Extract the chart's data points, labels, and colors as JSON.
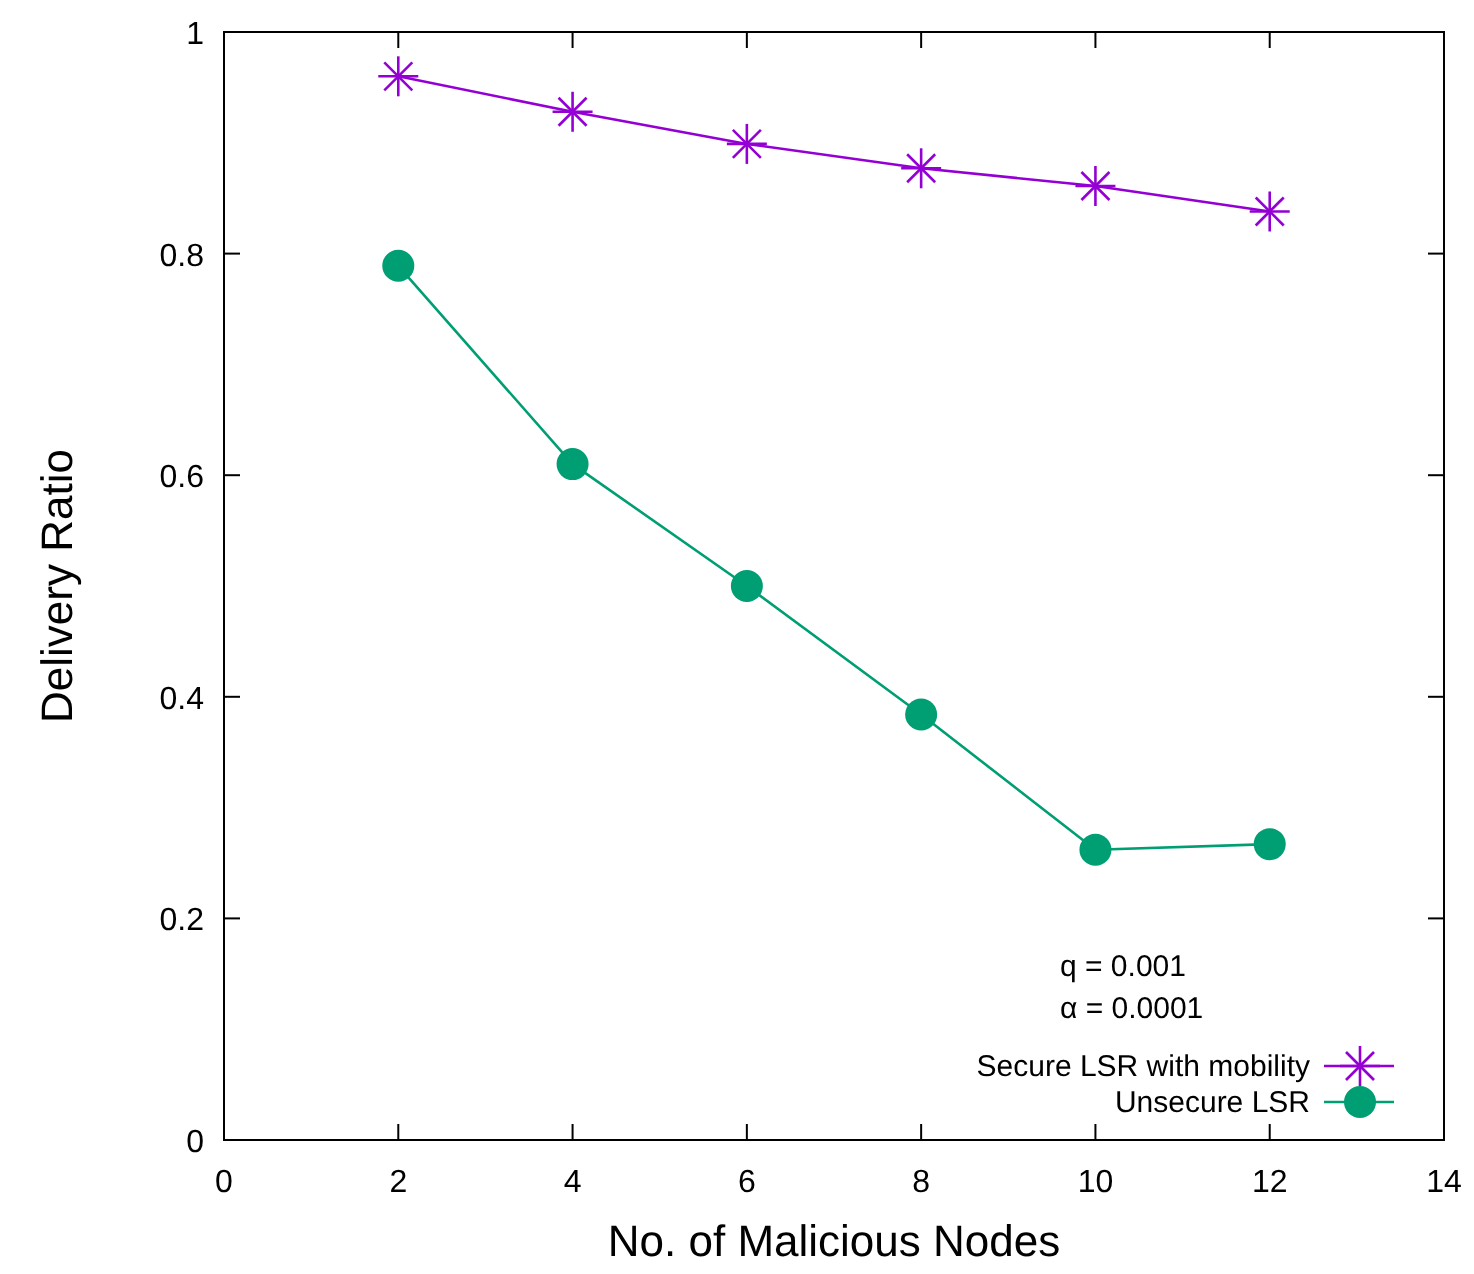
{
  "chart_data": {
    "type": "line",
    "xlabel": "No. of Malicious Nodes",
    "ylabel": "Delivery Ratio",
    "x": [
      2,
      4,
      6,
      8,
      10,
      12
    ],
    "series": [
      {
        "name": "Secure LSR with mobility",
        "color": "#9400d3",
        "marker": "cross",
        "values": [
          0.96,
          0.928,
          0.899,
          0.877,
          0.861,
          0.838
        ]
      },
      {
        "name": "Unsecure LSR",
        "color": "#009e73",
        "marker": "circle",
        "values": [
          0.789,
          0.61,
          0.5,
          0.384,
          0.262,
          0.267
        ]
      }
    ],
    "xlim": [
      0,
      14
    ],
    "xticks": [
      0,
      2,
      4,
      6,
      8,
      10,
      12,
      14
    ],
    "ylim": [
      0,
      1
    ],
    "yticks": [
      0,
      0.2,
      0.4,
      0.6,
      0.8,
      1
    ],
    "annotations": [
      "q = 0.001",
      "α = 0.0001"
    ],
    "legend": "bottom right",
    "grid": false,
    "line_style": "solid"
  }
}
